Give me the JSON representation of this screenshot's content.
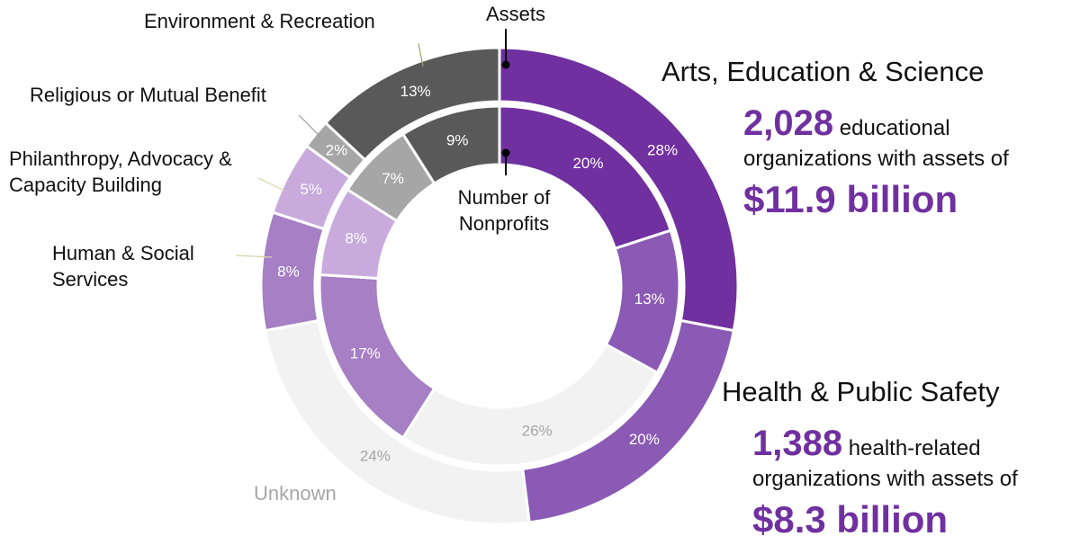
{
  "chart_data": {
    "type": "double-donut",
    "categories": [
      "Arts, Education & Science",
      "Health & Public Safety",
      "Unknown",
      "Human & Social Services",
      "Philanthropy, Advocacy & Capacity Building",
      "Religious or Mutual Benefit",
      "Environment & Recreation"
    ],
    "colors": [
      "#7030a0",
      "#8b5ab5",
      "#f2f2f2",
      "#a67fc4",
      "#c8aadd",
      "#a6a6a6",
      "#595959"
    ],
    "label_colors": [
      "#ffffff",
      "#ffffff",
      "#a6a6a6",
      "#ffffff",
      "#ffffff",
      "#ffffff",
      "#ffffff"
    ],
    "series": [
      {
        "name": "Assets",
        "values": [
          28,
          20,
          24,
          8,
          5,
          2,
          13
        ],
        "value_labels": [
          "28%",
          "20%",
          "24%",
          "8%",
          "5%",
          "2%",
          "13%"
        ]
      },
      {
        "name": "Number of Nonprofits",
        "values": [
          20,
          13,
          26,
          17,
          8,
          7,
          9
        ],
        "value_labels": [
          "20%",
          "13%",
          "26%",
          "17%",
          "8%",
          "7%",
          "9%"
        ]
      }
    ],
    "annotations": [
      {
        "number": "2,028",
        "text": "educational organizations with assets of",
        "amount": "$11.9 billion"
      },
      {
        "number": "1,388",
        "text": "health-related organizations with assets of",
        "amount": "$8.3 billion"
      }
    ]
  }
}
